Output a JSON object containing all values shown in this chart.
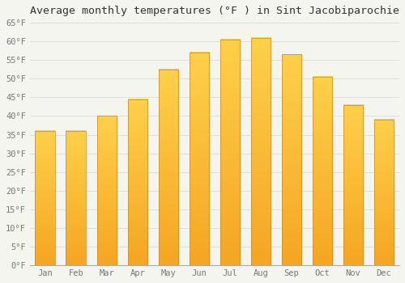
{
  "title": "Average monthly temperatures (°F ) in Sint Jacobiparochie",
  "months": [
    "Jan",
    "Feb",
    "Mar",
    "Apr",
    "May",
    "Jun",
    "Jul",
    "Aug",
    "Sep",
    "Oct",
    "Nov",
    "Dec"
  ],
  "values": [
    36,
    36,
    40,
    44.5,
    52.5,
    57,
    60.5,
    61,
    56.5,
    50.5,
    43,
    39
  ],
  "bar_color_bottom": "#F5A623",
  "bar_color_top": "#FFD04A",
  "bar_edge_color": "#C8882A",
  "background_color": "#F5F5F0",
  "grid_color": "#DDDDDD",
  "ylim": [
    0,
    65
  ],
  "yticks": [
    0,
    5,
    10,
    15,
    20,
    25,
    30,
    35,
    40,
    45,
    50,
    55,
    60,
    65
  ],
  "ylabel_suffix": "°F",
  "title_fontsize": 9.5,
  "tick_fontsize": 7.5,
  "font_family": "monospace"
}
